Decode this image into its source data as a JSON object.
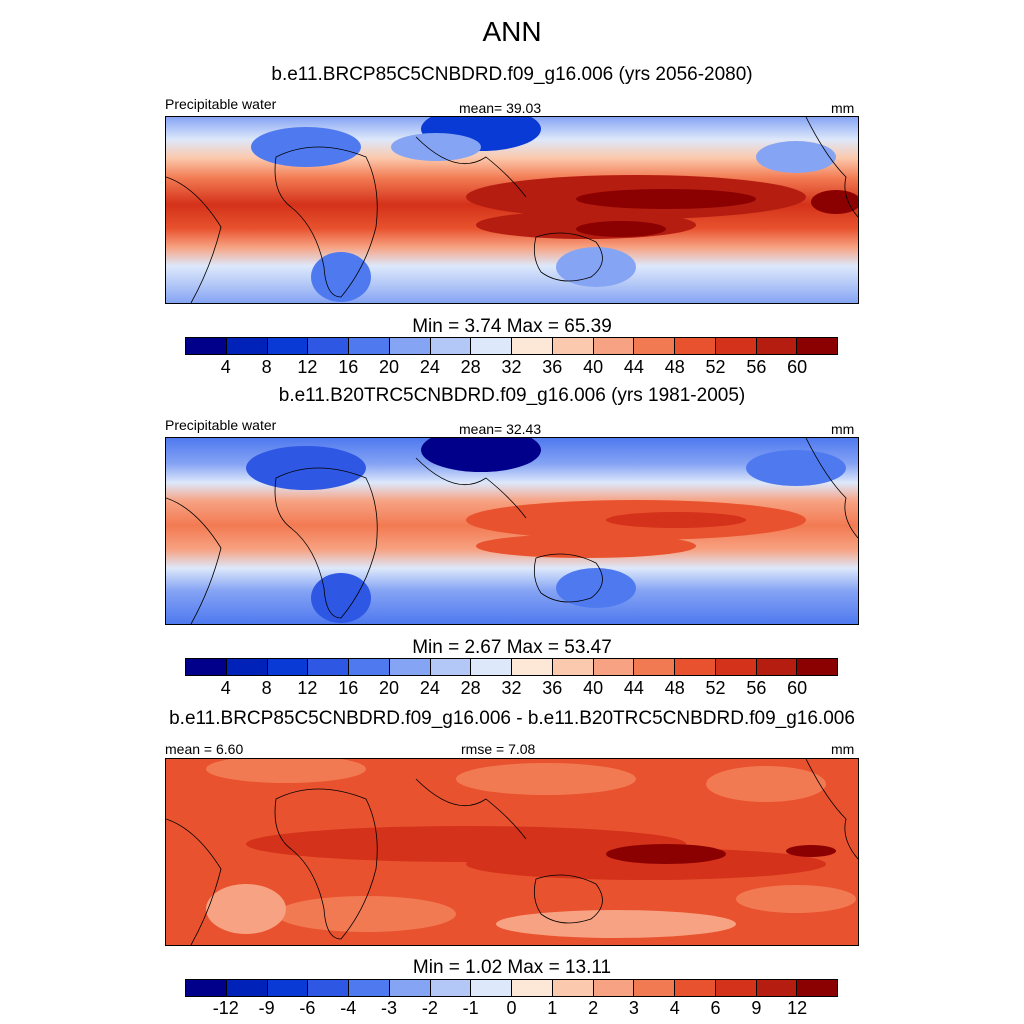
{
  "figure": {
    "title": "ANN"
  },
  "panels": [
    {
      "title": "b.e11.BRCP85C5CNBDRD.f09_g16.006 (yrs 2056-2080)",
      "left_label": "Precipitable water",
      "center_label": "mean=  39.03",
      "right_label": "mm",
      "minmax": "Min =   3.74 Max =  65.39",
      "colorbar": {
        "colors": [
          "#00008b",
          "#0022b8",
          "#0a3ad6",
          "#2e57e3",
          "#4f79ef",
          "#86a4f4",
          "#b3c8f7",
          "#dde8fb",
          "#fde8d8",
          "#fbc9ad",
          "#f7a282",
          "#f27a52",
          "#e8522e",
          "#d4321a",
          "#b51d10",
          "#8b0000"
        ],
        "ticks": [
          "4",
          "8",
          "12",
          "16",
          "20",
          "24",
          "28",
          "32",
          "36",
          "40",
          "44",
          "48",
          "52",
          "56",
          "60"
        ]
      }
    },
    {
      "title": "b.e11.B20TRC5CNBDRD.f09_g16.006 (yrs 1981-2005)",
      "left_label": "Precipitable water",
      "center_label": "mean=  32.43",
      "right_label": "mm",
      "minmax": "Min =   2.67 Max =  53.47",
      "colorbar": {
        "colors": [
          "#00008b",
          "#0022b8",
          "#0a3ad6",
          "#2e57e3",
          "#4f79ef",
          "#86a4f4",
          "#b3c8f7",
          "#dde8fb",
          "#fde8d8",
          "#fbc9ad",
          "#f7a282",
          "#f27a52",
          "#e8522e",
          "#d4321a",
          "#b51d10",
          "#8b0000"
        ],
        "ticks": [
          "4",
          "8",
          "12",
          "16",
          "20",
          "24",
          "28",
          "32",
          "36",
          "40",
          "44",
          "48",
          "52",
          "56",
          "60"
        ]
      }
    },
    {
      "title": "b.e11.BRCP85C5CNBDRD.f09_g16.006 - b.e11.B20TRC5CNBDRD.f09_g16.006",
      "left_label": "mean =   6.60",
      "center_label": "rmse =   7.08",
      "right_label": "mm",
      "minmax": "Min =   1.02 Max =  13.11",
      "colorbar": {
        "colors": [
          "#00008b",
          "#0022b8",
          "#0a3ad6",
          "#2e57e3",
          "#4f79ef",
          "#86a4f4",
          "#b3c8f7",
          "#dde8fb",
          "#fde8d8",
          "#fbc9ad",
          "#f7a282",
          "#f27a52",
          "#e8522e",
          "#d4321a",
          "#b51d10",
          "#8b0000"
        ],
        "ticks": [
          "-12",
          "-9",
          "-6",
          "-4",
          "-3",
          "-2",
          "-1",
          "0",
          "1",
          "2",
          "3",
          "4",
          "6",
          "9",
          "12"
        ]
      }
    }
  ]
}
